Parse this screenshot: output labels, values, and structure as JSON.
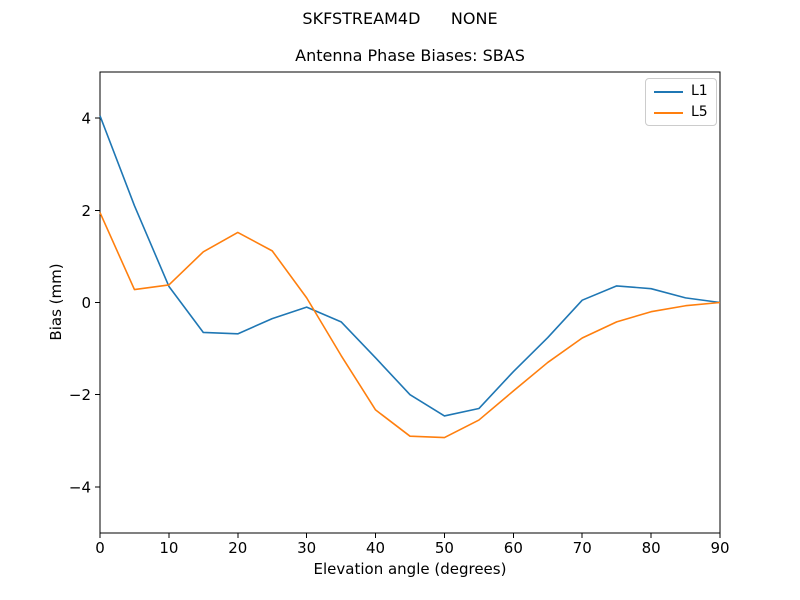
{
  "figure": {
    "suptitle": "SKFSTREAM4D      NONE",
    "background": "#ffffff",
    "text_color": "#000000",
    "spine_color": "#000000",
    "legend_border_color": "#cccccc"
  },
  "chart_data": {
    "type": "line",
    "title": "Antenna Phase Biases: SBAS",
    "xlabel": "Elevation angle (degrees)",
    "ylabel": "Bias (mm)",
    "xlim": [
      0,
      90
    ],
    "ylim": [
      -5,
      5
    ],
    "x_ticks": [
      0,
      10,
      20,
      30,
      40,
      50,
      60,
      70,
      80,
      90
    ],
    "y_ticks": [
      -4,
      -2,
      0,
      2,
      4
    ],
    "grid": false,
    "legend": {
      "position": "upper right"
    },
    "x": [
      0,
      5,
      10,
      15,
      20,
      25,
      30,
      35,
      40,
      45,
      50,
      55,
      60,
      65,
      70,
      75,
      80,
      85,
      90
    ],
    "series": [
      {
        "name": "L1",
        "color": "#1f77b4",
        "values": [
          4.05,
          2.1,
          0.35,
          -0.65,
          -0.68,
          -0.35,
          -0.1,
          -0.42,
          -1.2,
          -2.0,
          -2.46,
          -2.3,
          -1.5,
          -0.76,
          0.05,
          0.36,
          0.3,
          0.1,
          0.0
        ]
      },
      {
        "name": "L5",
        "color": "#ff7f0e",
        "values": [
          1.95,
          0.28,
          0.38,
          1.1,
          1.52,
          1.12,
          0.1,
          -1.15,
          -2.33,
          -2.9,
          -2.93,
          -2.55,
          -1.92,
          -1.3,
          -0.77,
          -0.42,
          -0.2,
          -0.07,
          0.0
        ]
      }
    ]
  }
}
